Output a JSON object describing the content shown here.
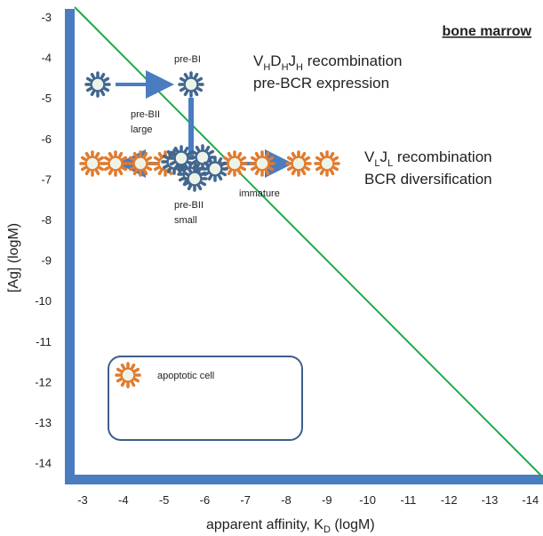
{
  "panel_title": "bone marrow",
  "x_axis": {
    "label_main": "apparent affinity, K",
    "label_sub": "D",
    "label_unit": " (logM)",
    "ticks": [
      "-3",
      "-4",
      "-5",
      "-6",
      "-7",
      "-8",
      "-9",
      "-10",
      "-11",
      "-12",
      "-13",
      "-14"
    ]
  },
  "y_axis": {
    "label": "[Ag] (logM)",
    "ticks": [
      "-3",
      "-4",
      "-5",
      "-6",
      "-7",
      "-8",
      "-9",
      "-10",
      "-11",
      "-12",
      "-13",
      "-14"
    ]
  },
  "annotations": {
    "recomb1_parts": [
      {
        "t": "V",
        "sub": false
      },
      {
        "t": "H",
        "sub": true
      },
      {
        "t": "D",
        "sub": false
      },
      {
        "t": "H",
        "sub": true
      },
      {
        "t": "J",
        "sub": false
      },
      {
        "t": "H",
        "sub": true
      },
      {
        "t": " recombination",
        "sub": false
      }
    ],
    "recomb1_line2": "pre-BCR expression",
    "recomb2_parts": [
      {
        "t": "V",
        "sub": false
      },
      {
        "t": "L",
        "sub": true
      },
      {
        "t": "J",
        "sub": false
      },
      {
        "t": "L",
        "sub": true
      },
      {
        "t": " recombination",
        "sub": false
      }
    ],
    "recomb2_line2": "BCR diversification",
    "pre_bi": "pre-BI",
    "pre_bii_large_1": "pre-BII",
    "pre_bii_large_2": "large",
    "pre_bii_small_1": "pre-BII",
    "pre_bii_small_2": "small",
    "immature": "immature",
    "legend_apoptotic": "apoptotic cell"
  },
  "colors": {
    "axis_blue": "#4a7cc0",
    "arrow_blue": "#4a7cc0",
    "cell_blue": "#41668f",
    "cell_orange": "#e07b2f",
    "cell_fill": "#eef3e8",
    "diagonal": "#21a84a",
    "legend_border": "#3d5e8a"
  }
}
